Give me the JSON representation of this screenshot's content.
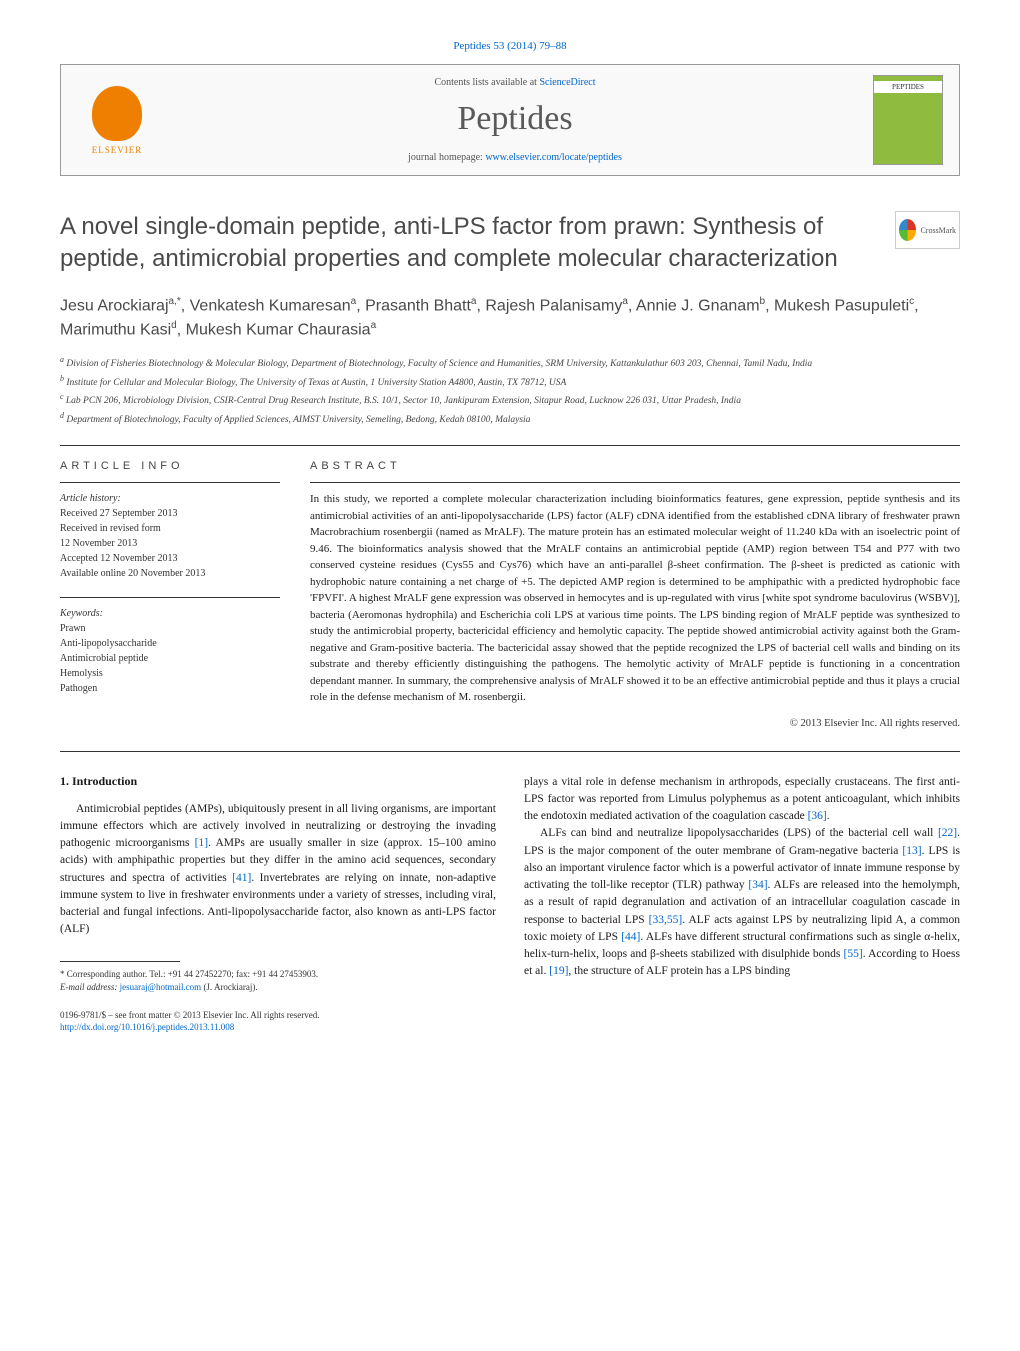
{
  "citation": "Peptides 53 (2014) 79–88",
  "header": {
    "contents_prefix": "Contents lists available at ",
    "contents_link": "ScienceDirect",
    "journal": "Peptides",
    "homepage_prefix": "journal homepage: ",
    "homepage_url": "www.elsevier.com/locate/peptides",
    "publisher": "ELSEVIER",
    "cover_label": "PEPTIDES"
  },
  "crossmark": "CrossMark",
  "title": "A novel single-domain peptide, anti-LPS factor from prawn: Synthesis of peptide, antimicrobial properties and complete molecular characterization",
  "authors_html": "Jesu Arockiaraj<sup>a,*</sup>, Venkatesh Kumaresan<sup>a</sup>, Prasanth Bhatt<sup>a</sup>, Rajesh Palanisamy<sup>a</sup>, Annie J. Gnanam<sup>b</sup>, Mukesh Pasupuleti<sup>c</sup>, Marimuthu Kasi<sup>d</sup>, Mukesh Kumar Chaurasia<sup>a</sup>",
  "affiliations": [
    "a Division of Fisheries Biotechnology & Molecular Biology, Department of Biotechnology, Faculty of Science and Humanities, SRM University, Kattankulathur 603 203, Chennai, Tamil Nadu, India",
    "b Institute for Cellular and Molecular Biology, The University of Texas at Austin, 1 University Station A4800, Austin, TX 78712, USA",
    "c Lab PCN 206, Microbiology Division, CSIR-Central Drug Research Institute, B.S. 10/1, Sector 10, Jankipuram Extension, Sitapur Road, Lucknow 226 031, Uttar Pradesh, India",
    "d Department of Biotechnology, Faculty of Applied Sciences, AIMST University, Semeling, Bedong, Kedah 08100, Malaysia"
  ],
  "info": {
    "label": "ARTICLE INFO",
    "history_label": "Article history:",
    "history": [
      "Received 27 September 2013",
      "Received in revised form",
      "12 November 2013",
      "Accepted 12 November 2013",
      "Available online 20 November 2013"
    ],
    "keywords_label": "Keywords:",
    "keywords": [
      "Prawn",
      "Anti-lipopolysaccharide",
      "Antimicrobial peptide",
      "Hemolysis",
      "Pathogen"
    ]
  },
  "abstract": {
    "label": "ABSTRACT",
    "text": "In this study, we reported a complete molecular characterization including bioinformatics features, gene expression, peptide synthesis and its antimicrobial activities of an anti-lipopolysaccharide (LPS) factor (ALF) cDNA identified from the established cDNA library of freshwater prawn Macrobrachium rosenbergii (named as MrALF). The mature protein has an estimated molecular weight of 11.240 kDa with an isoelectric point of 9.46. The bioinformatics analysis showed that the MrALF contains an antimicrobial peptide (AMP) region between T54 and P77 with two conserved cysteine residues (Cys55 and Cys76) which have an anti-parallel β-sheet confirmation. The β-sheet is predicted as cationic with hydrophobic nature containing a net charge of +5. The depicted AMP region is determined to be amphipathic with a predicted hydrophobic face 'FPVFI'. A highest MrALF gene expression was observed in hemocytes and is up-regulated with virus [white spot syndrome baculovirus (WSBV)], bacteria (Aeromonas hydrophila) and Escherichia coli LPS at various time points. The LPS binding region of MrALF peptide was synthesized to study the antimicrobial property, bactericidal efficiency and hemolytic capacity. The peptide showed antimicrobial activity against both the Gram-negative and Gram-positive bacteria. The bactericidal assay showed that the peptide recognized the LPS of bacterial cell walls and binding on its substrate and thereby efficiently distinguishing the pathogens. The hemolytic activity of MrALF peptide is functioning in a concentration dependant manner. In summary, the comprehensive analysis of MrALF showed it to be an effective antimicrobial peptide and thus it plays a crucial role in the defense mechanism of M. rosenbergii.",
    "copyright": "© 2013 Elsevier Inc. All rights reserved."
  },
  "body": {
    "heading": "1. Introduction",
    "left_p1": "Antimicrobial peptides (AMPs), ubiquitously present in all living organisms, are important immune effectors which are actively involved in neutralizing or destroying the invading pathogenic microorganisms [1]. AMPs are usually smaller in size (approx. 15–100 amino acids) with amphipathic properties but they differ in the amino acid sequences, secondary structures and spectra of activities [41]. Invertebrates are relying on innate, non-adaptive immune system to live in freshwater environments under a variety of stresses, including viral, bacterial and fungal infections. Anti-lipopolysaccharide factor, also known as anti-LPS factor (ALF)",
    "right_p1": "plays a vital role in defense mechanism in arthropods, especially crustaceans. The first anti-LPS factor was reported from Limulus polyphemus as a potent anticoagulant, which inhibits the endotoxin mediated activation of the coagulation cascade [36].",
    "right_p2": "ALFs can bind and neutralize lipopolysaccharides (LPS) of the bacterial cell wall [22]. LPS is the major component of the outer membrane of Gram-negative bacteria [13]. LPS is also an important virulence factor which is a powerful activator of innate immune response by activating the toll-like receptor (TLR) pathway [34]. ALFs are released into the hemolymph, as a result of rapid degranulation and activation of an intracellular coagulation cascade in response to bacterial LPS [33,55]. ALF acts against LPS by neutralizing lipid A, a common toxic moiety of LPS [44]. ALFs have different structural confirmations such as single α-helix, helix-turn-helix, loops and β-sheets stabilized with disulphide bonds [55]. According to Hoess et al. [19], the structure of ALF protein has a LPS binding"
  },
  "footnote": {
    "corresponding": "* Corresponding author. Tel.: +91 44 27452270; fax: +91 44 27453903.",
    "email_label": "E-mail address: ",
    "email": "jesuaraj@hotmail.com",
    "email_suffix": " (J. Arockiaraj)."
  },
  "bottom": {
    "line1": "0196-9781/$ – see front matter © 2013 Elsevier Inc. All rights reserved.",
    "doi": "http://dx.doi.org/10.1016/j.peptides.2013.11.008"
  },
  "refs": {
    "r1": "[1]",
    "r41": "[41]",
    "r36": "[36]",
    "r22": "[22]",
    "r13": "[13]",
    "r34": "[34]",
    "r33_55": "[33,55]",
    "r44": "[44]",
    "r55": "[55]",
    "r19": "[19]"
  },
  "colors": {
    "link": "#0066cc",
    "elsevier_orange": "#ee7f00",
    "cover_green": "#8fbc3f",
    "text_gray": "#4a4a4a"
  }
}
